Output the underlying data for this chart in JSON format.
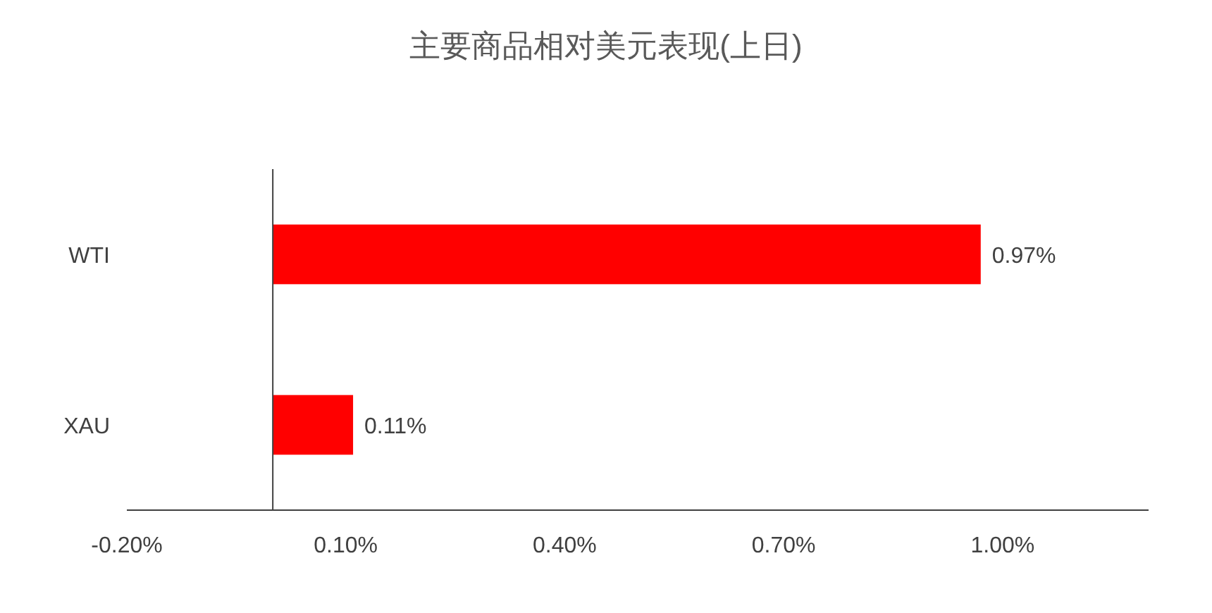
{
  "chart_data": {
    "type": "bar",
    "orientation": "horizontal",
    "title": "主要商品相对美元表现(上日)",
    "categories": [
      "WTI",
      "XAU"
    ],
    "values": [
      0.97,
      0.11
    ],
    "color": "#ff0000",
    "value_labels": [
      "0.97%",
      "0.11%"
    ],
    "xlim": [
      -0.2,
      1.2
    ],
    "xticks": [
      {
        "value": -0.2,
        "label": "-0.20%"
      },
      {
        "value": 0.1,
        "label": "0.10%"
      },
      {
        "value": 0.4,
        "label": "0.40%"
      },
      {
        "value": 0.7,
        "label": "0.70%"
      },
      {
        "value": 1.0,
        "label": "1.00%"
      }
    ]
  }
}
